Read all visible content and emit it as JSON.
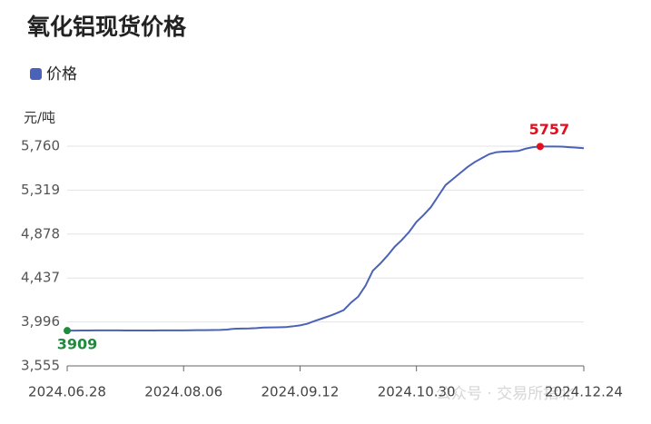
{
  "chart_data": {
    "type": "line",
    "title": "氧化铝现货价格",
    "y_axis_label": "元/吨",
    "watermark": "公众号 · 交易所指北",
    "categories": [
      "2024.06.28",
      null,
      null,
      null,
      null,
      null,
      null,
      null,
      null,
      null,
      null,
      null,
      null,
      null,
      null,
      null,
      "2024.08.06",
      null,
      null,
      null,
      null,
      null,
      null,
      null,
      null,
      null,
      null,
      null,
      null,
      null,
      null,
      null,
      "2024.09.12",
      null,
      null,
      null,
      null,
      null,
      null,
      null,
      null,
      null,
      null,
      null,
      null,
      null,
      null,
      null,
      "2024.10.30",
      null,
      null,
      null,
      null,
      null,
      null,
      null,
      null,
      null,
      null,
      null,
      null,
      null,
      null,
      null,
      null,
      null,
      null,
      null,
      null,
      null,
      null,
      "2024.12.24"
    ],
    "series": [
      {
        "name": "价格",
        "color": "#4a62b8",
        "values": [
          3909,
          3909,
          3910,
          3910,
          3911,
          3911,
          3911,
          3911,
          3910,
          3910,
          3910,
          3910,
          3910,
          3911,
          3911,
          3912,
          3912,
          3913,
          3914,
          3914,
          3915,
          3916,
          3920,
          3928,
          3930,
          3931,
          3934,
          3940,
          3941,
          3942,
          3944,
          3952,
          3962,
          3978,
          4005,
          4030,
          4055,
          4083,
          4115,
          4190,
          4250,
          4360,
          4510,
          4580,
          4660,
          4750,
          4820,
          4900,
          5000,
          5070,
          5150,
          5260,
          5370,
          5430,
          5490,
          5550,
          5600,
          5640,
          5680,
          5700,
          5705,
          5708,
          5712,
          5735,
          5750,
          5757,
          5757,
          5757,
          5755,
          5750,
          5745,
          5740
        ]
      }
    ],
    "highlight_colors": {
      "max": "#e0101e",
      "min": "#1e8c3e"
    },
    "ylim": [
      3555,
      5760
    ],
    "yticks": [
      {
        "value": 3555,
        "label": "3,555"
      },
      {
        "value": 3996,
        "label": "3,996"
      },
      {
        "value": 4437,
        "label": "4,437"
      },
      {
        "value": 4878,
        "label": "4,878"
      },
      {
        "value": 5319,
        "label": "5,319"
      },
      {
        "value": 5760,
        "label": "5,760"
      }
    ],
    "grid": true
  }
}
